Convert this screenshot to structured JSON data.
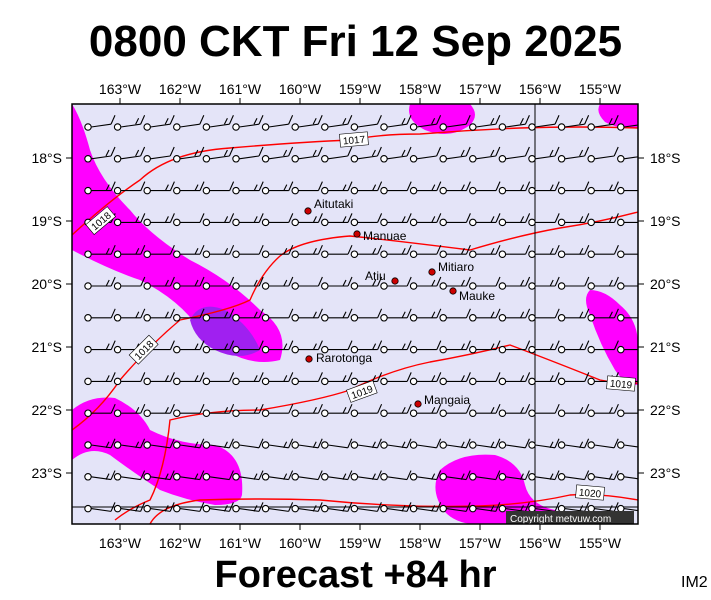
{
  "header": {
    "title": "0800 CKT Fri 12 Sep 2025"
  },
  "footer": {
    "forecast": "Forecast +84 hr",
    "code": "IM2"
  },
  "map": {
    "lon_range": [
      -163.8,
      -154.4
    ],
    "lat_range": [
      -23.9,
      -17.3
    ],
    "lon_ticks": [
      "163°W",
      "162°W",
      "161°W",
      "160°W",
      "159°W",
      "158°W",
      "157°W",
      "156°W",
      "155°W"
    ],
    "lat_ticks": [
      "18°S",
      "19°S",
      "20°S",
      "21°S",
      "22°S",
      "23°S"
    ],
    "places": [
      {
        "name": "Aitutaki"
      },
      {
        "name": "Manuae"
      },
      {
        "name": "Atiu"
      },
      {
        "name": "Mitiaro"
      },
      {
        "name": "Mauke"
      },
      {
        "name": "Rarotonga"
      },
      {
        "name": "Mangaia"
      }
    ],
    "isobar_labels": [
      "1017",
      "1018",
      "1018",
      "1019",
      "1019",
      "1020"
    ],
    "copyright": "Copyright metvuw.com",
    "colors": {
      "ocean": "#e4e4f8",
      "rain_light": "#ff00ff",
      "rain_heavy": "#a020f0",
      "isobar": "#ff0000"
    }
  }
}
